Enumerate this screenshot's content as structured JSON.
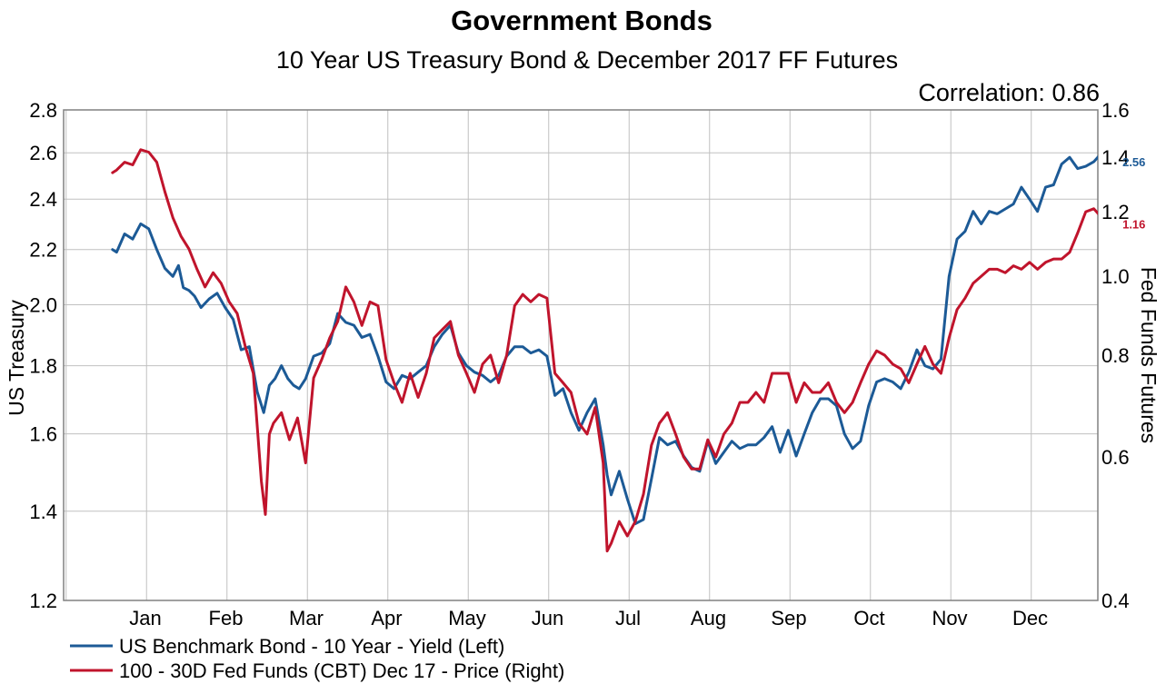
{
  "chart_data": {
    "type": "line",
    "title": "Government Bonds",
    "subtitle": "10 Year US Treasury Bond & December 2017 FF Futures",
    "annotation": "Correlation: 0.86",
    "ylabel_left": "US Treasury",
    "ylabel_right": "Fed Funds Futures",
    "y_left_scale": "log",
    "y_right_scale": "log",
    "y_left_lim": [
      1.2,
      2.8
    ],
    "y_right_lim": [
      0.4,
      1.6
    ],
    "y_left_ticks": [
      "2.8",
      "2.6",
      "2.4",
      "2.2",
      "2.0",
      "1.8",
      "1.6",
      "1.4",
      "1.2"
    ],
    "y_right_ticks": [
      "1.6",
      "1.4",
      "1.2",
      "1.0",
      "0.8",
      "0.6",
      "0.4"
    ],
    "x_ticks": [
      "Jan",
      "Feb",
      "Mar",
      "Apr",
      "May",
      "Jun",
      "Jul",
      "Aug",
      "Sep",
      "Oct",
      "Nov",
      "Dec"
    ],
    "x_range": [
      0,
      12.15
    ],
    "grid": true,
    "legend_position": "bottom-left",
    "series": [
      {
        "name": "US Benchmark Bond - 10 Year - Yield  (Left)",
        "axis": "left",
        "color": "#1c5a96",
        "end_label": "2.56",
        "x": [
          -0.4,
          -0.35,
          -0.25,
          -0.15,
          -0.05,
          0.05,
          0.15,
          0.25,
          0.35,
          0.42,
          0.48,
          0.55,
          0.62,
          0.7,
          0.8,
          0.9,
          1.0,
          1.1,
          1.2,
          1.3,
          1.4,
          1.48,
          1.55,
          1.62,
          1.7,
          1.78,
          1.85,
          1.92,
          2.0,
          2.1,
          2.2,
          2.3,
          2.4,
          2.5,
          2.6,
          2.7,
          2.8,
          2.9,
          3.0,
          3.1,
          3.2,
          3.3,
          3.4,
          3.5,
          3.6,
          3.7,
          3.8,
          3.9,
          4.0,
          4.1,
          4.2,
          4.3,
          4.4,
          4.5,
          4.6,
          4.7,
          4.8,
          4.9,
          5.0,
          5.1,
          5.2,
          5.3,
          5.4,
          5.5,
          5.6,
          5.7,
          5.75,
          5.8,
          5.9,
          6.0,
          6.1,
          6.2,
          6.3,
          6.4,
          6.5,
          6.6,
          6.7,
          6.8,
          6.9,
          7.0,
          7.1,
          7.2,
          7.3,
          7.4,
          7.5,
          7.6,
          7.7,
          7.8,
          7.9,
          8.0,
          8.1,
          8.2,
          8.3,
          8.4,
          8.5,
          8.6,
          8.7,
          8.8,
          8.9,
          9.0,
          9.1,
          9.2,
          9.3,
          9.4,
          9.5,
          9.6,
          9.7,
          9.8,
          9.9,
          10.0,
          10.1,
          10.2,
          10.3,
          10.4,
          10.5,
          10.6,
          10.7,
          10.8,
          10.9,
          11.0,
          11.1,
          11.2,
          11.3,
          11.4,
          11.5,
          11.6,
          11.7,
          11.8,
          11.9,
          12.0,
          12.1
        ],
        "y": [
          2.2,
          2.19,
          2.26,
          2.24,
          2.3,
          2.28,
          2.2,
          2.13,
          2.1,
          2.14,
          2.06,
          2.05,
          2.03,
          1.99,
          2.02,
          2.04,
          1.99,
          1.95,
          1.85,
          1.86,
          1.72,
          1.66,
          1.74,
          1.76,
          1.8,
          1.76,
          1.74,
          1.73,
          1.76,
          1.83,
          1.84,
          1.87,
          1.97,
          1.94,
          1.93,
          1.89,
          1.9,
          1.83,
          1.75,
          1.73,
          1.77,
          1.76,
          1.78,
          1.8,
          1.86,
          1.9,
          1.93,
          1.84,
          1.8,
          1.78,
          1.77,
          1.75,
          1.77,
          1.83,
          1.86,
          1.86,
          1.84,
          1.85,
          1.83,
          1.71,
          1.73,
          1.66,
          1.61,
          1.66,
          1.7,
          1.57,
          1.49,
          1.44,
          1.5,
          1.43,
          1.37,
          1.38,
          1.48,
          1.59,
          1.57,
          1.58,
          1.54,
          1.51,
          1.5,
          1.58,
          1.52,
          1.55,
          1.58,
          1.56,
          1.57,
          1.57,
          1.59,
          1.62,
          1.55,
          1.61,
          1.54,
          1.6,
          1.66,
          1.7,
          1.7,
          1.68,
          1.6,
          1.56,
          1.58,
          1.68,
          1.75,
          1.76,
          1.75,
          1.73,
          1.78,
          1.85,
          1.8,
          1.79,
          1.82,
          2.1,
          2.24,
          2.27,
          2.35,
          2.3,
          2.35,
          2.34,
          2.36,
          2.38,
          2.45,
          2.4,
          2.35,
          2.45,
          2.46,
          2.55,
          2.58,
          2.53,
          2.54,
          2.56,
          2.6,
          2.55,
          2.56
        ]
      },
      {
        "name": "100 - 30D Fed Funds (CBT) Dec 17 - Price  (Right)",
        "axis": "right",
        "color": "#c0142c",
        "end_label": "1.16",
        "x": [
          -0.4,
          -0.35,
          -0.25,
          -0.15,
          -0.05,
          0.05,
          0.15,
          0.25,
          0.35,
          0.45,
          0.55,
          0.65,
          0.75,
          0.85,
          0.95,
          1.05,
          1.15,
          1.25,
          1.35,
          1.45,
          1.5,
          1.55,
          1.6,
          1.7,
          1.8,
          1.9,
          2.0,
          2.1,
          2.2,
          2.3,
          2.4,
          2.5,
          2.6,
          2.7,
          2.8,
          2.9,
          3.0,
          3.1,
          3.2,
          3.3,
          3.4,
          3.5,
          3.6,
          3.7,
          3.8,
          3.9,
          4.0,
          4.1,
          4.2,
          4.3,
          4.4,
          4.5,
          4.6,
          4.7,
          4.8,
          4.9,
          5.0,
          5.1,
          5.2,
          5.3,
          5.4,
          5.5,
          5.6,
          5.7,
          5.75,
          5.8,
          5.9,
          6.0,
          6.1,
          6.2,
          6.3,
          6.4,
          6.5,
          6.6,
          6.7,
          6.8,
          6.9,
          7.0,
          7.1,
          7.2,
          7.3,
          7.4,
          7.5,
          7.6,
          7.7,
          7.8,
          7.9,
          8.0,
          8.1,
          8.2,
          8.3,
          8.4,
          8.5,
          8.6,
          8.7,
          8.8,
          8.9,
          9.0,
          9.1,
          9.2,
          9.3,
          9.4,
          9.5,
          9.6,
          9.7,
          9.8,
          9.9,
          10.0,
          10.1,
          10.2,
          10.3,
          10.4,
          10.5,
          10.6,
          10.7,
          10.8,
          10.9,
          11.0,
          11.1,
          11.2,
          11.3,
          11.4,
          11.5,
          11.6,
          11.7,
          11.8,
          11.9,
          12.0,
          12.1
        ],
        "y": [
          1.34,
          1.35,
          1.38,
          1.37,
          1.43,
          1.42,
          1.38,
          1.27,
          1.18,
          1.12,
          1.08,
          1.02,
          0.97,
          1.01,
          0.98,
          0.93,
          0.9,
          0.82,
          0.76,
          0.56,
          0.51,
          0.64,
          0.66,
          0.68,
          0.63,
          0.67,
          0.59,
          0.75,
          0.79,
          0.84,
          0.88,
          0.97,
          0.93,
          0.87,
          0.93,
          0.92,
          0.79,
          0.74,
          0.7,
          0.76,
          0.71,
          0.76,
          0.84,
          0.86,
          0.88,
          0.8,
          0.76,
          0.72,
          0.78,
          0.8,
          0.74,
          0.8,
          0.92,
          0.95,
          0.93,
          0.95,
          0.94,
          0.76,
          0.74,
          0.72,
          0.66,
          0.64,
          0.69,
          0.59,
          0.46,
          0.47,
          0.5,
          0.48,
          0.5,
          0.54,
          0.62,
          0.66,
          0.68,
          0.64,
          0.6,
          0.58,
          0.58,
          0.63,
          0.6,
          0.64,
          0.66,
          0.7,
          0.7,
          0.72,
          0.7,
          0.76,
          0.76,
          0.76,
          0.7,
          0.74,
          0.72,
          0.72,
          0.74,
          0.7,
          0.68,
          0.7,
          0.74,
          0.78,
          0.81,
          0.8,
          0.78,
          0.77,
          0.74,
          0.78,
          0.82,
          0.78,
          0.76,
          0.84,
          0.91,
          0.94,
          0.98,
          1.0,
          1.02,
          1.02,
          1.01,
          1.03,
          1.02,
          1.04,
          1.02,
          1.04,
          1.05,
          1.05,
          1.07,
          1.13,
          1.2,
          1.21,
          1.18,
          1.16,
          1.16
        ]
      }
    ]
  }
}
